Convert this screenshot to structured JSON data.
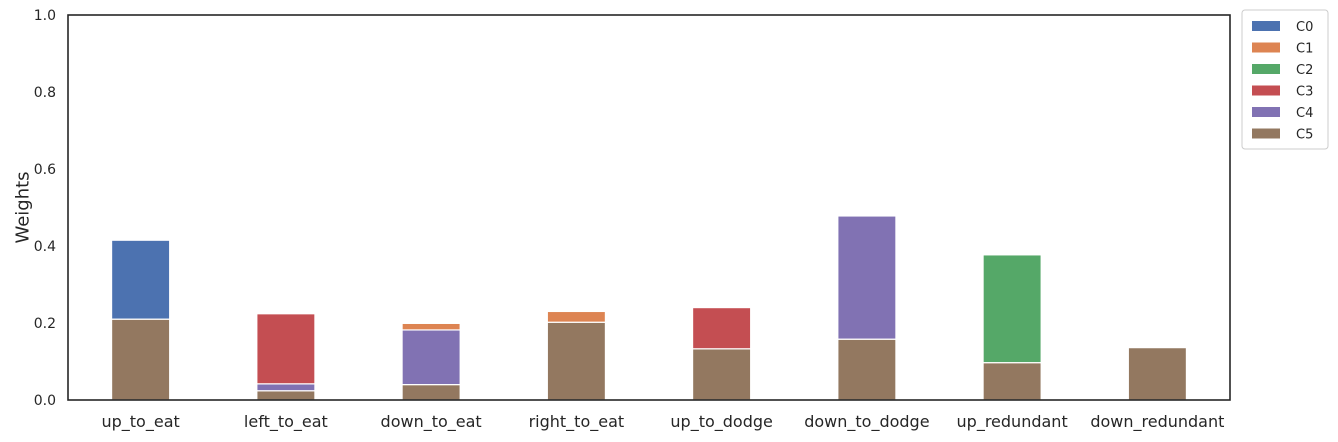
{
  "chart_data": {
    "type": "bar",
    "stacked": true,
    "title": "",
    "xlabel": "",
    "ylabel": "Weights",
    "ylim": [
      0,
      1.0
    ],
    "yticks": [
      "0.0",
      "0.2",
      "0.4",
      "0.6",
      "0.8",
      "1.0"
    ],
    "grid": false,
    "legend_position": "outside-top-right",
    "categories": [
      "up_to_eat",
      "left_to_eat",
      "down_to_eat",
      "right_to_eat",
      "up_to_dodge",
      "down_to_dodge",
      "up_redundant",
      "down_redundant"
    ],
    "series": [
      {
        "name": "C0",
        "color": "#4c72b0",
        "values": [
          0.205,
          0,
          0,
          0,
          0,
          0,
          0,
          0
        ]
      },
      {
        "name": "C1",
        "color": "#dd8452",
        "values": [
          0,
          0,
          0.017,
          0.028,
          0,
          0,
          0,
          0
        ]
      },
      {
        "name": "C2",
        "color": "#55a868",
        "values": [
          0,
          0,
          0,
          0,
          0,
          0,
          0.28,
          0
        ]
      },
      {
        "name": "C3",
        "color": "#c44e52",
        "values": [
          0,
          0.182,
          0,
          0,
          0.107,
          0,
          0,
          0
        ]
      },
      {
        "name": "C4",
        "color": "#8172b3",
        "values": [
          0,
          0.018,
          0.142,
          0,
          0,
          0.32,
          0,
          0
        ]
      },
      {
        "name": "C5",
        "color": "#937860",
        "values": [
          0.21,
          0.024,
          0.04,
          0.202,
          0.133,
          0.158,
          0.097,
          0.136
        ]
      }
    ],
    "stack_order": [
      "C5",
      "C4",
      "C3",
      "C2",
      "C1",
      "C0"
    ]
  }
}
